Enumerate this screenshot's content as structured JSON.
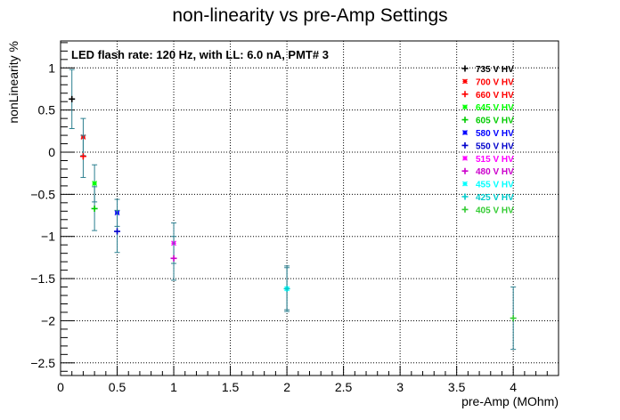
{
  "chart_data": {
    "type": "scatter",
    "title": "non-linearity vs pre-Amp Settings",
    "xlabel": "pre-Amp (MOhm)",
    "ylabel": "nonLinearity %",
    "annotation": "LED flash rate: 120 Hz, with LL: 6.0 nA, PMT# 3",
    "xlim": [
      0,
      4.4
    ],
    "ylim": [
      -2.65,
      1.32
    ],
    "grid": true,
    "legend_placement": "top-right",
    "x_ticks": [
      "0",
      "0.5",
      "1",
      "1.5",
      "2",
      "2.5",
      "3",
      "3.5",
      "4"
    ],
    "y_ticks": [
      "1",
      "0.5",
      "0",
      "−0.5",
      "−1",
      "−1.5",
      "−2",
      "−2.5"
    ],
    "series": [
      {
        "name": "735 V HV",
        "color": "#000000",
        "marker": "+",
        "points": [
          {
            "x": 0.1,
            "y": 0.63,
            "err": 0.35
          }
        ]
      },
      {
        "name": "700 V HV",
        "color": "#ff0000",
        "marker": "*",
        "points": [
          {
            "x": 0.2,
            "y": 0.18,
            "err": 0.22
          }
        ]
      },
      {
        "name": "660 V HV",
        "color": "#ff0000",
        "marker": "+",
        "points": [
          {
            "x": 0.2,
            "y": -0.05,
            "err": 0.25
          }
        ]
      },
      {
        "name": "645 V HV",
        "color": "#00ff00",
        "marker": "*",
        "points": [
          {
            "x": 0.3,
            "y": -0.37,
            "err": 0.22
          }
        ]
      },
      {
        "name": "605 V HV",
        "color": "#00cc00",
        "marker": "+",
        "points": [
          {
            "x": 0.3,
            "y": -0.67,
            "err": 0.26
          }
        ]
      },
      {
        "name": "580 V HV",
        "color": "#0000ff",
        "marker": "*",
        "points": [
          {
            "x": 0.5,
            "y": -0.72,
            "err": 0.16
          }
        ]
      },
      {
        "name": "550 V HV",
        "color": "#0000cc",
        "marker": "+",
        "points": [
          {
            "x": 0.5,
            "y": -0.94,
            "err": 0.25
          }
        ]
      },
      {
        "name": "515 V HV",
        "color": "#ff00ff",
        "marker": "*",
        "points": [
          {
            "x": 1.0,
            "y": -1.08,
            "err": 0.24
          }
        ]
      },
      {
        "name": "480 V HV",
        "color": "#cc00cc",
        "marker": "+",
        "points": [
          {
            "x": 1.0,
            "y": -1.26,
            "err": 0.26
          }
        ]
      },
      {
        "name": "455 V HV",
        "color": "#00ffff",
        "marker": "*",
        "points": [
          {
            "x": 2.0,
            "y": -1.62,
            "err": 0.27
          }
        ]
      },
      {
        "name": "425 V HV",
        "color": "#00cccc",
        "marker": "+",
        "points": [
          {
            "x": 2.0,
            "y": -1.62,
            "err": 0.25
          }
        ]
      },
      {
        "name": "405 V HV",
        "color": "#33cc33",
        "marker": "+",
        "points": [
          {
            "x": 4.0,
            "y": -1.97,
            "err": 0.37
          }
        ]
      }
    ]
  }
}
